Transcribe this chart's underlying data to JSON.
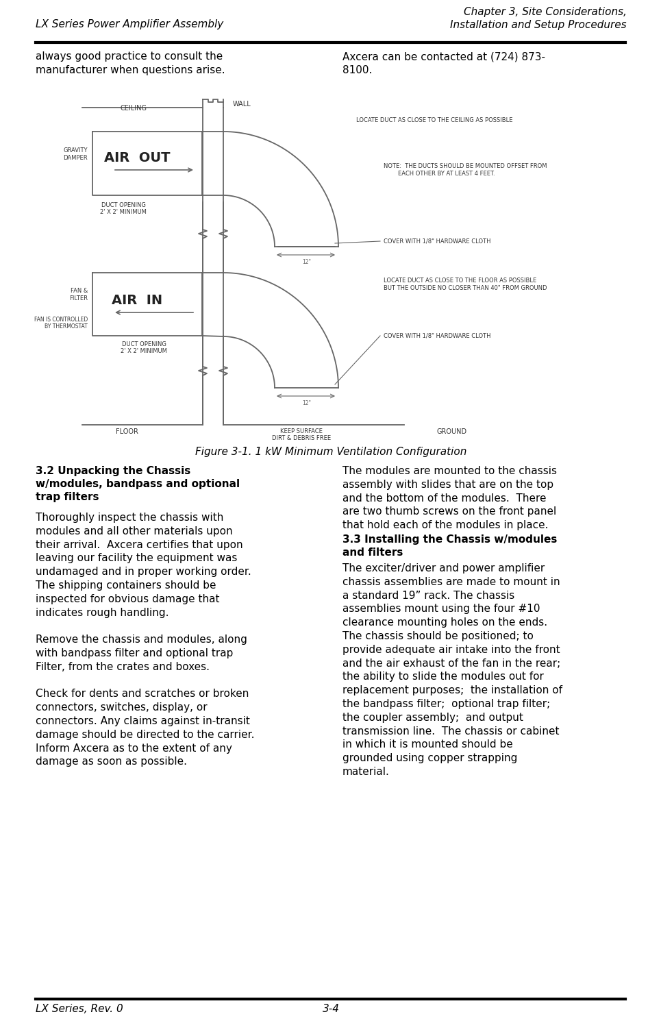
{
  "header_left": "LX Series Power Amplifier Assembly",
  "header_right": "Chapter 3, Site Considerations,\nInstallation and Setup Procedures",
  "footer_left": "LX Series, Rev. 0",
  "footer_center": "3-4",
  "figure_caption": "Figure 3-1. 1 kW Minimum Ventilation Configuration",
  "section_3_2_heading": "3.2 Unpacking the Chassis\nw/modules, bandpass and optional\ntrap filters",
  "section_3_2_left": "Thoroughly inspect the chassis with\nmodules and all other materials upon\ntheir arrival.  Axcera certifies that upon\nleaving our facility the equipment was\nundamaged and in proper working order.\nThe shipping containers should be\ninspected for obvious damage that\nindicates rough handling.\n\nRemove the chassis and modules, along\nwith bandpass filter and optional trap\nFilter, from the crates and boxes.\n\nCheck for dents and scratches or broken\nconnectors, switches, display, or\nconnectors. Any claims against in-transit\ndamage should be directed to the carrier.\nInform Axcera as to the extent of any\ndamage as soon as possible.",
  "section_3_2_right": "The modules are mounted to the chassis\nassembly with slides that are on the top\nand the bottom of the modules.  There\nare two thumb screws on the front panel\nthat hold each of the modules in place.",
  "section_3_3_heading": "3.3 Installing the Chassis w/modules\nand filters",
  "section_3_3_right": "The exciter/driver and power amplifier\nchassis assemblies are made to mount in\na standard 19” rack. The chassis\nassemblies mount using the four #10\nclearance mounting holes on the ends.\nThe chassis should be positioned; to\nprovide adequate air intake into the front\nand the air exhaust of the fan in the rear;\nthe ability to slide the modules out for\nreplacement purposes;  the installation of\nthe bandpass filter;  optional trap filter;\nthe coupler assembly;  and output\ntransmission line.  The chassis or cabinet\nin which it is mounted should be\ngrounded using copper strapping\nmaterial.",
  "intro_left": "always good practice to consult the\nmanufacturer when questions arise.",
  "intro_right": "Axcera can be contacted at (724) 873-\n8100.",
  "bg_color": "#ffffff",
  "text_color": "#000000",
  "line_color": "#000000",
  "diag_line_color": "#666666",
  "font_size_header": 11,
  "font_size_body": 11,
  "font_size_caption": 11,
  "font_size_footer": 11,
  "font_size_diag_label": 7,
  "font_size_diag_note": 6,
  "font_size_air": 14
}
